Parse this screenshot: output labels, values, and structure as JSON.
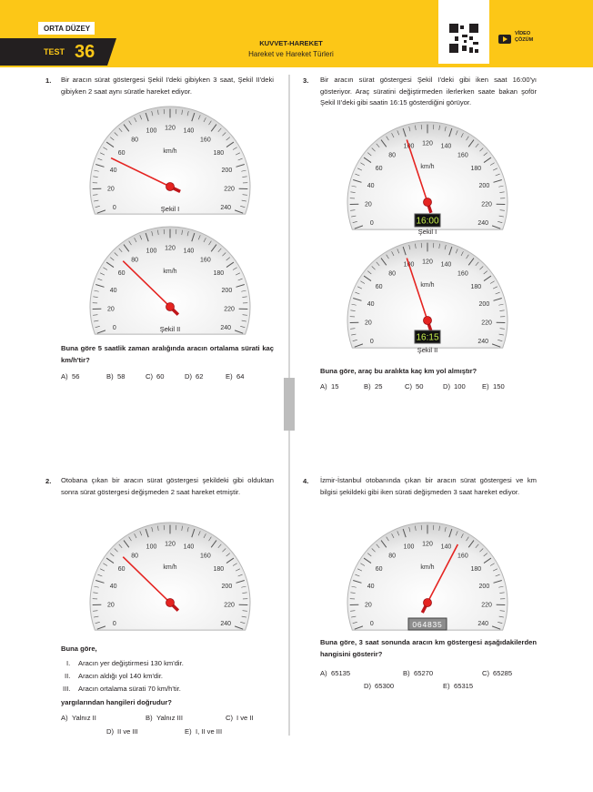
{
  "header": {
    "level": "ORTA DÜZEY",
    "test_label": "TEST",
    "test_number": "36",
    "topic": "KUVVET-HAREKET",
    "subtopic": "Hareket ve Hareket Türleri",
    "video": "VİDEO",
    "solution": "ÇÖZÜM"
  },
  "gauge": {
    "scale": [
      0,
      20,
      40,
      60,
      80,
      100,
      120,
      140,
      160,
      180,
      200,
      220,
      240
    ],
    "unit": "km/h"
  },
  "questions": [
    {
      "number": "1.",
      "text": "Bir aracın sürat göstergesi Şekil I'deki gibiyken 3 saat, Şekil II'deki gibiyken 2 saat aynı süratle hareket ediyor.",
      "figures": [
        {
          "caption": "Şekil I"
        },
        {
          "caption": "Şekil II"
        }
      ],
      "prompt": "Buna göre 5 saatlik zaman aralığında aracın ortalama sürati kaç km/h'tir?",
      "options": [
        {
          "letter": "A)",
          "text": "56"
        },
        {
          "letter": "B)",
          "text": "58"
        },
        {
          "letter": "C)",
          "text": "60"
        },
        {
          "letter": "D)",
          "text": "62"
        },
        {
          "letter": "E)",
          "text": "64"
        }
      ]
    },
    {
      "number": "2.",
      "text": "Otobana çıkan bir aracın sürat göstergesi şekildeki gibi olduktan sonra sürat göstergesi değişmeden 2 saat hareket etmiştir.",
      "intro": "Buna göre,",
      "statements": [
        {
          "numeral": "I.",
          "text": "Aracın yer değiştirmesi 130 km'dir."
        },
        {
          "numeral": "II.",
          "text": "Aracın aldığı yol 140 km'dir."
        },
        {
          "numeral": "III.",
          "text": "Aracın ortalama sürati 70 km/h'tir."
        }
      ],
      "prompt": "yargılarından hangileri doğrudur?",
      "options": [
        {
          "letter": "A)",
          "text": "Yalnız II"
        },
        {
          "letter": "B)",
          "text": "Yalnız III"
        },
        {
          "letter": "C)",
          "text": "I ve II"
        },
        {
          "letter": "D)",
          "text": "II ve III"
        },
        {
          "letter": "E)",
          "text": "I, II ve III"
        }
      ]
    },
    {
      "number": "3.",
      "text": "Bir aracın sürat göstergesi Şekil I'deki gibi iken saat 16:00'yı gösteriyor. Araç süratini değiştirmeden ilerlerken saate bakan şoför Şekil II'deki gibi saatin 16:15 gösterdiğini görüyor.",
      "figures": [
        {
          "caption": "Şekil I",
          "clock": "16:00"
        },
        {
          "caption": "Şekil II",
          "clock": "16:15"
        }
      ],
      "prompt": "Buna göre, araç bu aralıkta kaç km yol almıştır?",
      "options": [
        {
          "letter": "A)",
          "text": "15"
        },
        {
          "letter": "B)",
          "text": "25"
        },
        {
          "letter": "C)",
          "text": "50"
        },
        {
          "letter": "D)",
          "text": "100"
        },
        {
          "letter": "E)",
          "text": "150"
        }
      ]
    },
    {
      "number": "4.",
      "text": "İzmir-İstanbul otobanında çıkan bir aracın sürat göstergesi ve km bilgisi şekildeki gibi iken sürati değişmeden 3 saat hareket ediyor.",
      "odometer": "064835",
      "prompt": "Buna göre, 3 saat sonunda aracın km göstergesi aşağıdakilerden hangisini gösterir?",
      "options": [
        {
          "letter": "A)",
          "text": "65135"
        },
        {
          "letter": "B)",
          "text": "65270"
        },
        {
          "letter": "C)",
          "text": "65285"
        },
        {
          "letter": "D)",
          "text": "65300"
        },
        {
          "letter": "E)",
          "text": "65315"
        }
      ]
    }
  ]
}
